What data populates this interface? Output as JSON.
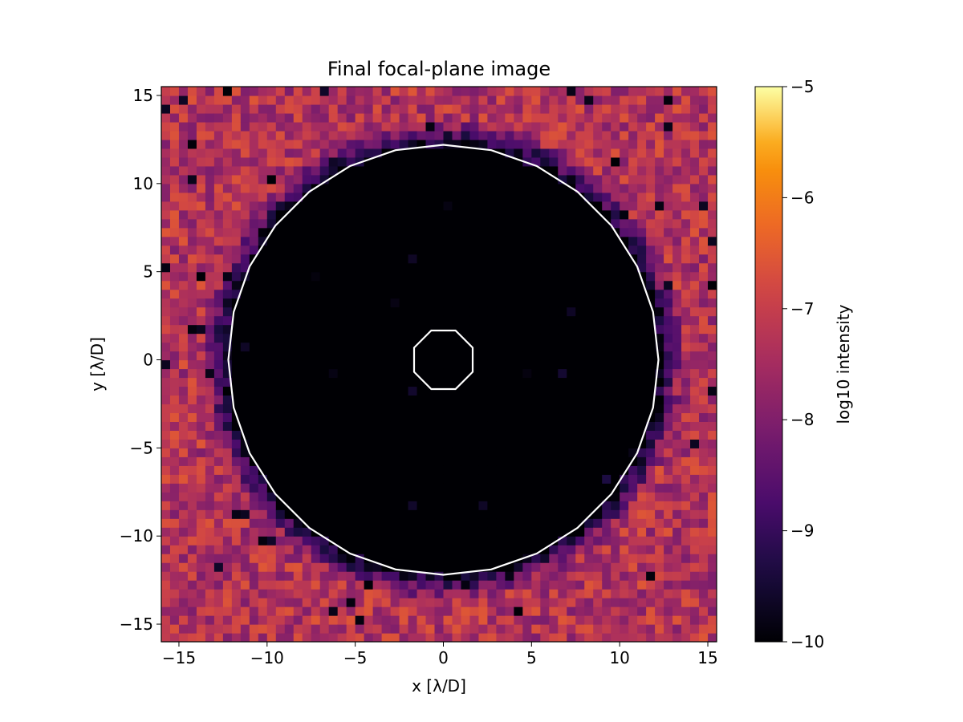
{
  "chart_data": {
    "type": "heatmap",
    "title": "Final focal-plane image",
    "xlabel": "x [λ/D]",
    "ylabel": "y [λ/D]",
    "xlim": [
      -16,
      15.5
    ],
    "ylim": [
      -16,
      15.5
    ],
    "x_ticks": [
      -15,
      -10,
      -5,
      0,
      5,
      10,
      15
    ],
    "y_ticks": [
      -15,
      -10,
      -5,
      0,
      5,
      10,
      15
    ],
    "x_tick_labels": [
      "−15",
      "−10",
      "−5",
      "0",
      "5",
      "10",
      "15"
    ],
    "y_tick_labels": [
      "−15",
      "−10",
      "−5",
      "0",
      "5",
      "10",
      "15"
    ],
    "grid": false,
    "pixel_size": 0.5,
    "colormap": "inferno",
    "colorbar": {
      "label": "log10 intensity",
      "range": [
        -10,
        -5
      ],
      "ticks": [
        -10,
        -9,
        -8,
        -7,
        -6,
        -5
      ],
      "tick_labels": [
        "−10",
        "−9",
        "−8",
        "−7",
        "−6",
        "−5"
      ]
    },
    "dark_hole": {
      "inner_radius": 1.8,
      "outer_radius": 12.2,
      "contour_color": "#ffffff",
      "inner_value": -10,
      "outer_background_mean": -7.3
    }
  }
}
